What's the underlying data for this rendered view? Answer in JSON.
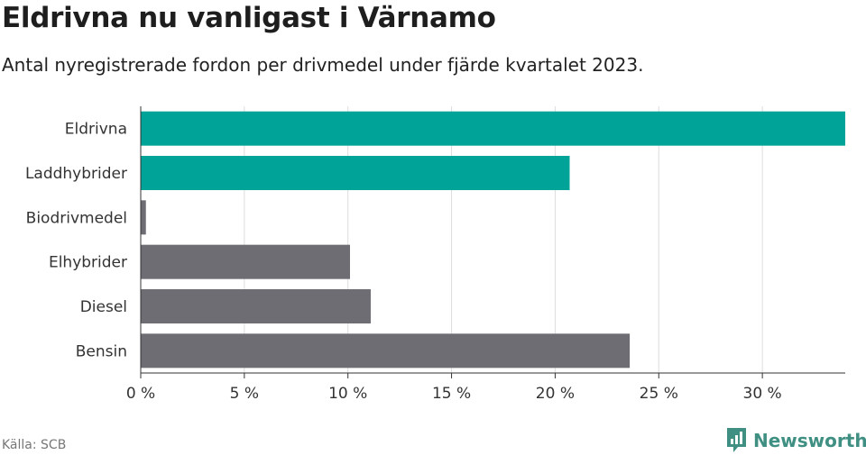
{
  "header": {
    "title": "Eldrivna nu vanligast i Värnamo",
    "subtitle": "Antal nyregistrerade fordon per drivmedel under fjärde kvartalet 2023."
  },
  "footer": {
    "source": "Källa: SCB",
    "brand": "Newsworthy"
  },
  "colors": {
    "highlight": "#00a398",
    "other": "#6e6d74",
    "grid": "#dddddd",
    "axis": "#333333"
  },
  "chart_data": {
    "type": "bar",
    "orientation": "horizontal",
    "title": "Eldrivna nu vanligast i Värnamo",
    "subtitle": "Antal nyregistrerade fordon per drivmedel under fjärde kvartalet 2023.",
    "categories": [
      "Eldrivna",
      "Laddhybrider",
      "Biodrivmedel",
      "Elhybrider",
      "Diesel",
      "Bensin"
    ],
    "values": [
      34.0,
      20.7,
      0.25,
      10.1,
      11.1,
      23.6
    ],
    "highlighted": [
      true,
      true,
      false,
      false,
      false,
      false
    ],
    "xlim": [
      0,
      34.0
    ],
    "xticks": [
      0,
      5,
      10,
      15,
      20,
      25,
      30
    ],
    "xtick_labels": [
      "0 %",
      "5 %",
      "10 %",
      "15 %",
      "20 %",
      "25 %",
      "30 %"
    ],
    "xlabel": "",
    "ylabel": "",
    "grid": true
  }
}
